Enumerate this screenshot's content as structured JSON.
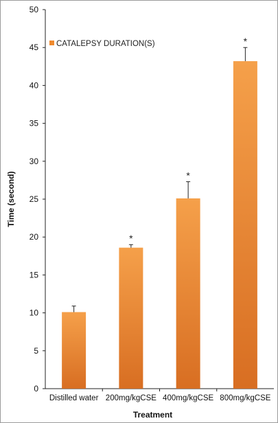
{
  "chart_data": {
    "type": "bar",
    "title": "",
    "xlabel": "Treatment",
    "ylabel": "Time (second)",
    "categories": [
      "Distilled water",
      "200mg/kgCSE",
      "400mg/kgCSE",
      "800mg/kgCSE"
    ],
    "series": [
      {
        "name": "CATALEPSY DURATION(S)",
        "values": [
          10.1,
          18.6,
          25.1,
          43.2
        ],
        "error": [
          0.8,
          0.4,
          2.2,
          1.8
        ],
        "significance": [
          "",
          "*",
          "*",
          "*"
        ]
      }
    ],
    "ylim": [
      0,
      50
    ],
    "yticks": [
      0,
      5,
      10,
      15,
      20,
      25,
      30,
      35,
      40,
      45,
      50
    ],
    "grid": false,
    "legend_position": "top-left",
    "colors": {
      "bar_top": "#f5a04a",
      "bar_bottom": "#d86e22",
      "legend_swatch": "#ef8a2e"
    }
  }
}
